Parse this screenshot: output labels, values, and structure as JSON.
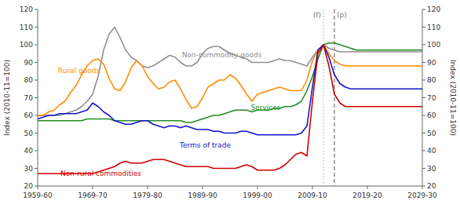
{
  "chart_data": {
    "type": "line",
    "grid": false,
    "y_label": "Index (2010-11=100)",
    "y2_label": "Index (2010-11=100)",
    "xlim": [
      1959.5,
      2029.5
    ],
    "xticks": [
      {
        "value": 1959.5,
        "label": "1959-60"
      },
      {
        "value": 1969.5,
        "label": "1969-70"
      },
      {
        "value": 1979.5,
        "label": "1979-80"
      },
      {
        "value": 1989.5,
        "label": "1989-90"
      },
      {
        "value": 1999.5,
        "label": "1999-00"
      },
      {
        "value": 2009.5,
        "label": "2009-10"
      },
      {
        "value": 2019.5,
        "label": "2019-20"
      },
      {
        "value": 2029.5,
        "label": "2029-30"
      }
    ],
    "ylim": [
      20,
      120
    ],
    "yticks": [
      20,
      30,
      40,
      50,
      60,
      70,
      80,
      90,
      100,
      110,
      120
    ],
    "y2lim": [
      20,
      120
    ],
    "y2ticks": [
      20,
      30,
      40,
      50,
      60,
      70,
      80,
      90,
      100,
      110,
      120
    ],
    "series": [
      {
        "color": "#909090",
        "x": [
          1959.5,
          1960.5,
          1961.5,
          1962.5,
          1963.5,
          1964.5,
          1965.5,
          1966.5,
          1967.5,
          1968.5,
          1969.5,
          1970.5,
          1971.5,
          1972.5,
          1973.5,
          1974.5,
          1975.5,
          1976.5,
          1977.5,
          1978.5,
          1979.5,
          1980.5,
          1981.5,
          1982.5,
          1983.5,
          1984.5,
          1985.5,
          1986.5,
          1987.5,
          1988.5,
          1989.5,
          1990.5,
          1991.5,
          1992.5,
          1993.5,
          1994.5,
          1995.5,
          1996.5,
          1997.5,
          1998.5,
          1999.5,
          2000.5,
          2001.5,
          2002.5,
          2003.5,
          2004.5,
          2005.5,
          2006.5,
          2007.5,
          2008.5,
          2009.5,
          2010.5,
          2011.5
        ],
        "values": [
          60,
          60,
          60,
          60,
          60,
          61,
          62,
          63,
          65,
          68,
          72,
          82,
          97,
          106,
          110,
          104,
          97,
          93,
          91,
          88,
          87,
          88,
          90,
          92,
          94,
          93,
          90,
          88,
          88,
          90,
          95,
          98,
          99,
          99,
          97,
          95,
          94,
          93,
          92,
          90,
          90,
          90,
          90,
          91,
          92,
          91,
          91,
          90,
          89,
          88,
          93,
          97,
          100
        ]
      },
      {
        "color": "#FF8C00",
        "x": [
          1959.5,
          1960.5,
          1961.5,
          1962.5,
          1963.5,
          1964.5,
          1965.5,
          1966.5,
          1967.5,
          1968.5,
          1969.5,
          1970.5,
          1971.5,
          1972.5,
          1973.5,
          1974.5,
          1975.5,
          1976.5,
          1977.5,
          1978.5,
          1979.5,
          1980.5,
          1981.5,
          1982.5,
          1983.5,
          1984.5,
          1985.5,
          1986.5,
          1987.5,
          1988.5,
          1989.5,
          1990.5,
          1991.5,
          1992.5,
          1993.5,
          1994.5,
          1995.5,
          1996.5,
          1997.5,
          1998.5,
          1999.5,
          2000.5,
          2001.5,
          2002.5,
          2003.5,
          2004.5,
          2005.5,
          2006.5,
          2007.5,
          2008.5,
          2009.5,
          2010.5,
          2011.5
        ],
        "values": [
          60,
          60,
          62,
          63,
          66,
          68,
          73,
          77,
          83,
          88,
          91,
          92,
          89,
          81,
          75,
          74,
          79,
          87,
          91,
          88,
          82,
          78,
          75,
          76,
          79,
          80,
          75,
          69,
          64,
          65,
          70,
          76,
          78,
          80,
          80,
          83,
          81,
          77,
          72,
          68,
          72,
          73,
          74,
          75,
          76,
          75,
          74,
          74,
          74,
          80,
          91,
          97,
          100
        ]
      },
      {
        "color": "#228B22",
        "x": [
          1959.5,
          1960.5,
          1961.5,
          1962.5,
          1963.5,
          1964.5,
          1965.5,
          1966.5,
          1967.5,
          1968.5,
          1969.5,
          1970.5,
          1971.5,
          1972.5,
          1973.5,
          1974.5,
          1975.5,
          1976.5,
          1977.5,
          1978.5,
          1979.5,
          1980.5,
          1981.5,
          1982.5,
          1983.5,
          1984.5,
          1985.5,
          1986.5,
          1987.5,
          1988.5,
          1989.5,
          1990.5,
          1991.5,
          1992.5,
          1993.5,
          1994.5,
          1995.5,
          1996.5,
          1997.5,
          1998.5,
          1999.5,
          2000.5,
          2001.5,
          2002.5,
          2003.5,
          2004.5,
          2005.5,
          2006.5,
          2007.5,
          2008.5,
          2009.5,
          2010.5,
          2011.5
        ],
        "values": [
          57,
          57,
          57,
          57,
          57,
          57,
          57,
          57,
          57,
          58,
          58,
          58,
          58,
          58,
          57,
          57,
          57,
          57,
          57,
          57,
          57,
          57,
          57,
          57,
          57,
          57,
          57,
          56,
          56,
          57,
          58,
          59,
          60,
          60,
          61,
          62,
          63,
          63,
          63,
          62,
          63,
          63,
          63,
          64,
          64,
          65,
          65,
          66,
          68,
          74,
          82,
          92,
          100
        ]
      },
      {
        "color": "#1414CD",
        "x": [
          1959.5,
          1960.5,
          1961.5,
          1962.5,
          1963.5,
          1964.5,
          1965.5,
          1966.5,
          1967.5,
          1968.5,
          1969.5,
          1970.5,
          1971.5,
          1972.5,
          1973.5,
          1974.5,
          1975.5,
          1976.5,
          1977.5,
          1978.5,
          1979.5,
          1980.5,
          1981.5,
          1982.5,
          1983.5,
          1984.5,
          1985.5,
          1986.5,
          1987.5,
          1988.5,
          1989.5,
          1990.5,
          1991.5,
          1992.5,
          1993.5,
          1994.5,
          1995.5,
          1996.5,
          1997.5,
          1998.5,
          1999.5,
          2000.5,
          2001.5,
          2002.5,
          2003.5,
          2004.5,
          2005.5,
          2006.5,
          2007.5,
          2008.5,
          2009.5,
          2010.5,
          2011.5
        ],
        "values": [
          58,
          59,
          60,
          60,
          61,
          61,
          61,
          61,
          62,
          63,
          67,
          65,
          62,
          60,
          57,
          56,
          55,
          55,
          56,
          57,
          57,
          55,
          54,
          53,
          54,
          54,
          53,
          54,
          53,
          52,
          52,
          52,
          51,
          51,
          50,
          50,
          50,
          51,
          51,
          50,
          49,
          49,
          49,
          49,
          49,
          49,
          49,
          49,
          50,
          54,
          76,
          97,
          100
        ]
      },
      {
        "color": "#CC0000",
        "x": [
          1959.5,
          1960.5,
          1961.5,
          1962.5,
          1963.5,
          1964.5,
          1965.5,
          1966.5,
          1967.5,
          1968.5,
          1969.5,
          1970.5,
          1971.5,
          1972.5,
          1973.5,
          1974.5,
          1975.5,
          1976.5,
          1977.5,
          1978.5,
          1979.5,
          1980.5,
          1981.5,
          1982.5,
          1983.5,
          1984.5,
          1985.5,
          1986.5,
          1987.5,
          1988.5,
          1989.5,
          1990.5,
          1991.5,
          1992.5,
          1993.5,
          1994.5,
          1995.5,
          1996.5,
          1997.5,
          1998.5,
          1999.5,
          2000.5,
          2001.5,
          2002.5,
          2003.5,
          2004.5,
          2005.5,
          2006.5,
          2007.5,
          2008.5,
          2009.5,
          2010.5,
          2011.5
        ],
        "values": [
          27,
          27,
          27,
          27,
          27,
          27,
          27,
          27,
          27,
          27,
          27,
          28,
          29,
          30,
          31,
          33,
          34,
          33,
          33,
          33,
          34,
          35,
          35,
          35,
          34,
          33,
          32,
          31,
          31,
          31,
          31,
          31,
          30,
          30,
          30,
          30,
          30,
          31,
          32,
          31,
          29,
          29,
          29,
          29,
          30,
          32,
          35,
          38,
          39,
          37,
          68,
          95,
          100
        ]
      },
      {
        "color": "#909090",
        "x": [
          2011.5,
          2012.5,
          2013.5,
          2014.5,
          2015.5,
          2016.5,
          2017.5,
          2018.5,
          2019.5,
          2020.5,
          2021.5,
          2022.5,
          2023.5,
          2024.5,
          2025.5,
          2026.5,
          2027.5,
          2028.5,
          2029.5
        ],
        "values": [
          100,
          98,
          97,
          96,
          96,
          96,
          96,
          96,
          96,
          96,
          96,
          96,
          96,
          96,
          96,
          96,
          96,
          96,
          96
        ]
      },
      {
        "color": "#FF8C00",
        "x": [
          2011.5,
          2012.5,
          2013.5,
          2014.5,
          2015.5,
          2016.5,
          2017.5,
          2018.5,
          2019.5,
          2020.5,
          2021.5,
          2022.5,
          2023.5,
          2024.5,
          2025.5,
          2026.5,
          2027.5,
          2028.5,
          2029.5
        ],
        "values": [
          100,
          95,
          91,
          89,
          88,
          88,
          88,
          88,
          88,
          88,
          88,
          88,
          88,
          88,
          88,
          88,
          88,
          88,
          88
        ]
      },
      {
        "color": "#228B22",
        "x": [
          2011.5,
          2012.5,
          2013.5,
          2014.5,
          2015.5,
          2016.5,
          2017.5,
          2018.5,
          2019.5,
          2020.5,
          2021.5,
          2022.5,
          2023.5,
          2024.5,
          2025.5,
          2026.5,
          2027.5,
          2028.5,
          2029.5
        ],
        "values": [
          100,
          101,
          101,
          100,
          99,
          98,
          97,
          97,
          97,
          97,
          97,
          97,
          97,
          97,
          97,
          97,
          97,
          97,
          97
        ]
      },
      {
        "color": "#1414CD",
        "x": [
          2011.5,
          2012.5,
          2013.5,
          2014.5,
          2015.5,
          2016.5,
          2017.5,
          2018.5,
          2019.5,
          2020.5,
          2021.5,
          2022.5,
          2023.5,
          2024.5,
          2025.5,
          2026.5,
          2027.5,
          2028.5,
          2029.5
        ],
        "values": [
          100,
          93,
          83,
          78,
          76,
          75,
          75,
          75,
          75,
          75,
          75,
          75,
          75,
          75,
          75,
          75,
          75,
          75,
          75
        ]
      },
      {
        "color": "#CC0000",
        "x": [
          2011.5,
          2012.5,
          2013.5,
          2014.5,
          2015.5,
          2016.5,
          2017.5,
          2018.5,
          2019.5,
          2020.5,
          2021.5,
          2022.5,
          2023.5,
          2024.5,
          2025.5,
          2026.5,
          2027.5,
          2028.5,
          2029.5
        ],
        "values": [
          100,
          88,
          72,
          67,
          65,
          65,
          65,
          65,
          65,
          65,
          65,
          65,
          65,
          65,
          65,
          65,
          65,
          65,
          65
        ]
      }
    ],
    "annotations": [
      {
        "text": "(f)",
        "x": 2011.5,
        "color": "#aaaaaa",
        "line_style": "dotted"
      },
      {
        "text": "(p)",
        "x": 2013.5,
        "color": "#555555",
        "line_style": "dashed"
      },
      {
        "text": "Non-commodity goods",
        "x": 1993,
        "y": 93,
        "color": "#909090"
      },
      {
        "text": "Rural goods",
        "x": 1967,
        "y": 84,
        "color": "#FF8C00"
      },
      {
        "text": "Services",
        "x": 2001,
        "y": 63,
        "color": "#228B22"
      },
      {
        "text": "Terms of trade",
        "x": 1990,
        "y": 42,
        "color": "#1414CD"
      },
      {
        "text": "Non-rural commodities",
        "x": 1971,
        "y": 26,
        "color": "#CC0000"
      }
    ]
  }
}
